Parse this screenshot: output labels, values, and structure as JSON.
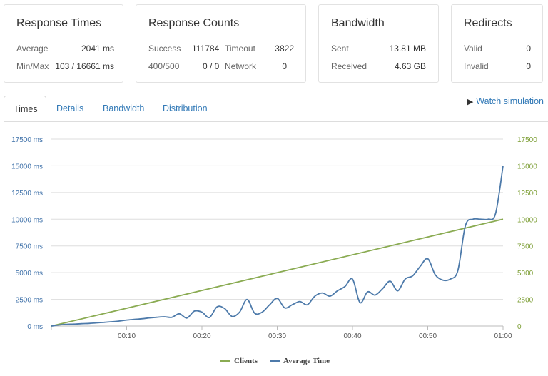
{
  "response_times": {
    "title": "Response Times",
    "average_label": "Average",
    "average_value": "2041 ms",
    "minmax_label": "Min/Max",
    "minmax_value": "103 / 16661 ms"
  },
  "response_counts": {
    "title": "Response Counts",
    "success_label": "Success",
    "success_value": "111784",
    "timeout_label": "Timeout",
    "timeout_value": "3822",
    "s400_label": "400/500",
    "s400_value": "0 / 0",
    "network_label": "Network",
    "network_value": "0"
  },
  "bandwidth": {
    "title": "Bandwidth",
    "sent_label": "Sent",
    "sent_value": "13.81 MB",
    "received_label": "Received",
    "received_value": "4.63 GB"
  },
  "redirects": {
    "title": "Redirects",
    "valid_label": "Valid",
    "valid_value": "0",
    "invalid_label": "Invalid",
    "invalid_value": "0"
  },
  "tabs": [
    {
      "label": "Times",
      "active": true
    },
    {
      "label": "Details",
      "active": false
    },
    {
      "label": "Bandwidth",
      "active": false
    },
    {
      "label": "Distribution",
      "active": false
    }
  ],
  "watch_simulation": {
    "label": "Watch simulation",
    "icon": "play-icon"
  },
  "colors": {
    "clients": "#8aab52",
    "average_time": "#4d7aaa",
    "left_axis": "#3c6fa8",
    "right_axis": "#7b9d32",
    "grid": "#dddddd"
  },
  "chart_data": {
    "type": "line",
    "x_ticks": [
      "00:10",
      "00:20",
      "00:30",
      "00:40",
      "00:50",
      "01:00"
    ],
    "x_range_seconds": [
      0,
      60
    ],
    "y_left_ticks": [
      "0 ms",
      "2500 ms",
      "5000 ms",
      "7500 ms",
      "10000 ms",
      "12500 ms",
      "15000 ms",
      "17500 ms"
    ],
    "y_right_ticks": [
      "0",
      "2500",
      "5000",
      "7500",
      "10000",
      "12500",
      "15000",
      "17500"
    ],
    "ylim": [
      0,
      17500
    ],
    "grid": true,
    "legend_position": "bottom",
    "series": [
      {
        "name": "Clients",
        "axis": "right",
        "x": [
          0,
          60
        ],
        "y": [
          0,
          10000
        ]
      },
      {
        "name": "Average Time",
        "axis": "left",
        "x": [
          0,
          1,
          2,
          3,
          4,
          5,
          6,
          7,
          8,
          9,
          10,
          11,
          12,
          13,
          14,
          15,
          16,
          17,
          18,
          19,
          20,
          21,
          22,
          23,
          24,
          25,
          26,
          27,
          28,
          29,
          30,
          31,
          32,
          33,
          34,
          35,
          36,
          37,
          38,
          39,
          40,
          41,
          42,
          43,
          44,
          45,
          46,
          47,
          48,
          49,
          50,
          51,
          52,
          53,
          54,
          55,
          56,
          57,
          58,
          59,
          60
        ],
        "y": [
          0,
          100,
          160,
          180,
          220,
          250,
          300,
          350,
          400,
          470,
          560,
          620,
          680,
          760,
          820,
          870,
          820,
          1150,
          750,
          1400,
          1300,
          800,
          1800,
          1650,
          900,
          1300,
          2500,
          1200,
          1300,
          2000,
          2600,
          1700,
          2000,
          2300,
          2000,
          2800,
          3100,
          2800,
          3300,
          3700,
          4400,
          2200,
          3200,
          2900,
          3500,
          4200,
          3300,
          4400,
          4700,
          5600,
          6300,
          4800,
          4300,
          4400,
          5200,
          9400,
          10000,
          10000,
          10000,
          10500,
          15000
        ]
      }
    ]
  }
}
